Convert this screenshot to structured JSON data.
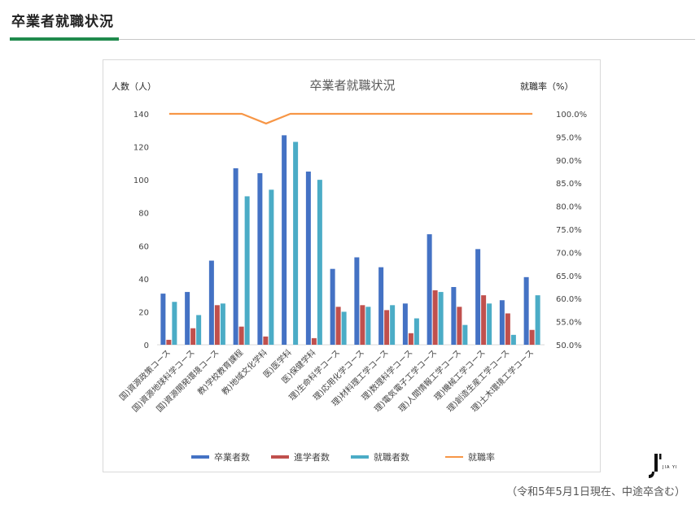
{
  "page": {
    "title": "卒業者就職状況",
    "note": "（令和5年5月1日現在、中途卒含む）",
    "logo_text": "JIA YI"
  },
  "colors": {
    "graduates": "#4472c4",
    "further_study": "#c0504d",
    "employed": "#4bacc6",
    "employment_rate": "#f79646",
    "accent": "#1f8a4c"
  },
  "chart_data": {
    "type": "bar",
    "title": "卒業者就職状況",
    "ylabel": "人数（人）",
    "y2label": "就職率（%）",
    "ylim": [
      0,
      140
    ],
    "yticks": [
      0,
      20,
      40,
      60,
      80,
      100,
      120,
      140
    ],
    "y2lim": [
      50,
      100
    ],
    "y2ticks": [
      "50.0%",
      "55.0%",
      "60.0%",
      "65.0%",
      "70.0%",
      "75.0%",
      "80.0%",
      "85.0%",
      "90.0%",
      "95.0%",
      "100.0%"
    ],
    "grid": false,
    "legend_position": "bottom",
    "categories": [
      "国)資源政策コース",
      "国)資源地球科学コース",
      "国)資源開発環境コース",
      "教)学校教育課程",
      "教)地域文化学科",
      "医)医学科",
      "医)保健学科",
      "理)生命科学コース",
      "理)応用化学コース",
      "理)材料理工学コース",
      "理)数理科学コース",
      "理)電気電子工学コース",
      "理)人間情報工学コース",
      "理)機械工学コース",
      "理)創造生産工学コース",
      "理)土木環境工学コース"
    ],
    "series": [
      {
        "name": "卒業者数",
        "type": "bar",
        "axis": "left",
        "values": [
          31,
          32,
          51,
          107,
          104,
          127,
          105,
          46,
          53,
          47,
          25,
          67,
          35,
          58,
          27,
          41
        ]
      },
      {
        "name": "進学者数",
        "type": "bar",
        "axis": "left",
        "values": [
          3,
          10,
          24,
          11,
          5,
          0,
          4,
          23,
          24,
          21,
          7,
          33,
          23,
          30,
          19,
          9
        ]
      },
      {
        "name": "就職者数",
        "type": "bar",
        "axis": "left",
        "values": [
          26,
          18,
          25,
          90,
          94,
          123,
          100,
          20,
          23,
          24,
          16,
          32,
          12,
          25,
          6,
          30
        ]
      },
      {
        "name": "就職率",
        "type": "line",
        "axis": "right",
        "values": [
          100,
          100,
          100,
          100,
          97.9,
          100,
          100,
          100,
          100,
          100,
          100,
          100,
          100,
          100,
          100,
          100
        ]
      }
    ]
  }
}
